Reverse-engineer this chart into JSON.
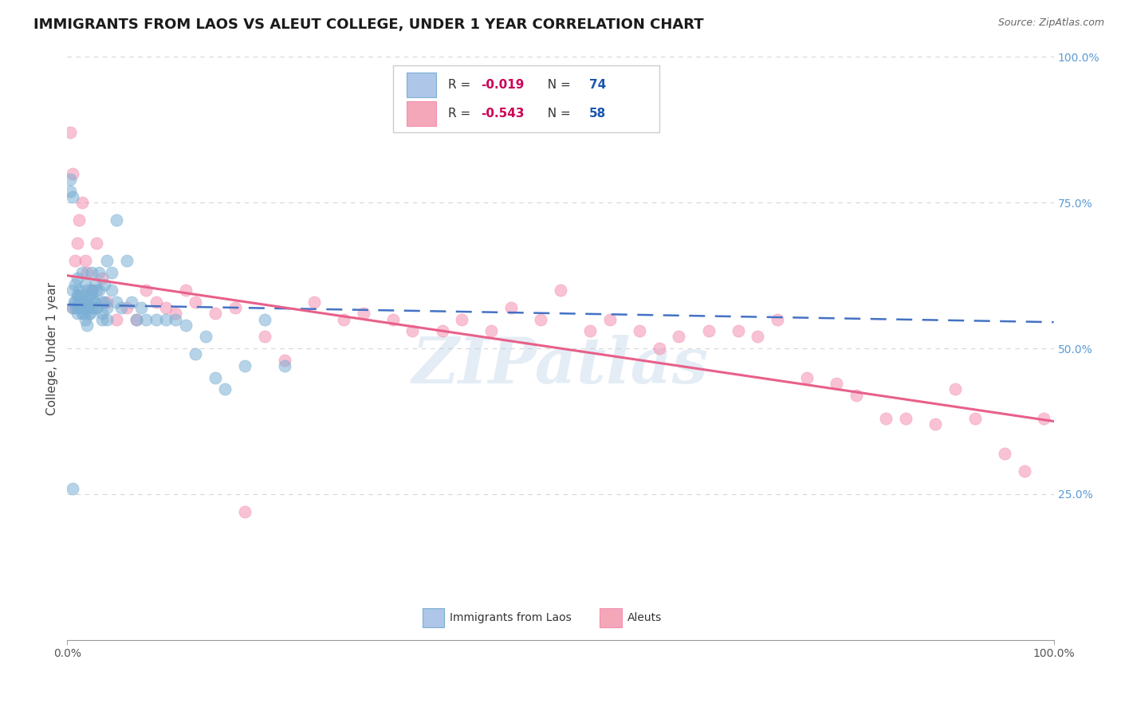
{
  "title": "IMMIGRANTS FROM LAOS VS ALEUT COLLEGE, UNDER 1 YEAR CORRELATION CHART",
  "source": "Source: ZipAtlas.com",
  "ylabel": "College, Under 1 year",
  "xlim": [
    0,
    1
  ],
  "ylim": [
    0,
    1
  ],
  "x_tick_labels": [
    "0.0%",
    "100.0%"
  ],
  "y_tick_labels": [
    "25.0%",
    "50.0%",
    "75.0%",
    "100.0%"
  ],
  "y_tick_positions": [
    0.25,
    0.5,
    0.75,
    1.0
  ],
  "watermark": "ZIPatlas",
  "blue_scatter_x": [
    0.005,
    0.005,
    0.008,
    0.008,
    0.01,
    0.01,
    0.01,
    0.012,
    0.012,
    0.015,
    0.015,
    0.015,
    0.018,
    0.018,
    0.018,
    0.02,
    0.02,
    0.02,
    0.022,
    0.022,
    0.025,
    0.025,
    0.025,
    0.028,
    0.028,
    0.03,
    0.03,
    0.032,
    0.032,
    0.035,
    0.035,
    0.038,
    0.038,
    0.04,
    0.04,
    0.045,
    0.045,
    0.05,
    0.05,
    0.055,
    0.06,
    0.065,
    0.07,
    0.075,
    0.08,
    0.09,
    0.1,
    0.11,
    0.12,
    0.13,
    0.14,
    0.15,
    0.16,
    0.18,
    0.2,
    0.22,
    0.003,
    0.003,
    0.005,
    0.007,
    0.009,
    0.011,
    0.013,
    0.015,
    0.017,
    0.019,
    0.021,
    0.023,
    0.025,
    0.027,
    0.03,
    0.035,
    0.04,
    0.005
  ],
  "blue_scatter_y": [
    0.57,
    0.6,
    0.61,
    0.58,
    0.62,
    0.59,
    0.56,
    0.6,
    0.57,
    0.63,
    0.59,
    0.56,
    0.61,
    0.58,
    0.55,
    0.6,
    0.57,
    0.54,
    0.59,
    0.56,
    0.63,
    0.6,
    0.57,
    0.61,
    0.58,
    0.6,
    0.57,
    0.63,
    0.6,
    0.58,
    0.55,
    0.61,
    0.58,
    0.65,
    0.57,
    0.63,
    0.6,
    0.58,
    0.72,
    0.57,
    0.65,
    0.58,
    0.55,
    0.57,
    0.55,
    0.55,
    0.55,
    0.55,
    0.54,
    0.49,
    0.52,
    0.45,
    0.43,
    0.47,
    0.55,
    0.47,
    0.79,
    0.77,
    0.76,
    0.58,
    0.57,
    0.59,
    0.58,
    0.57,
    0.56,
    0.58,
    0.57,
    0.56,
    0.59,
    0.58,
    0.57,
    0.56,
    0.55,
    0.26
  ],
  "pink_scatter_x": [
    0.005,
    0.008,
    0.01,
    0.012,
    0.015,
    0.018,
    0.02,
    0.025,
    0.03,
    0.035,
    0.04,
    0.05,
    0.06,
    0.07,
    0.08,
    0.09,
    0.1,
    0.11,
    0.12,
    0.13,
    0.15,
    0.17,
    0.2,
    0.22,
    0.25,
    0.28,
    0.3,
    0.33,
    0.35,
    0.38,
    0.4,
    0.43,
    0.45,
    0.48,
    0.5,
    0.53,
    0.55,
    0.58,
    0.6,
    0.62,
    0.65,
    0.68,
    0.7,
    0.72,
    0.75,
    0.78,
    0.8,
    0.83,
    0.85,
    0.88,
    0.9,
    0.92,
    0.95,
    0.97,
    0.99,
    0.003,
    0.005,
    0.18
  ],
  "pink_scatter_y": [
    0.57,
    0.65,
    0.68,
    0.72,
    0.75,
    0.65,
    0.63,
    0.6,
    0.68,
    0.62,
    0.58,
    0.55,
    0.57,
    0.55,
    0.6,
    0.58,
    0.57,
    0.56,
    0.6,
    0.58,
    0.56,
    0.57,
    0.52,
    0.48,
    0.58,
    0.55,
    0.56,
    0.55,
    0.53,
    0.53,
    0.55,
    0.53,
    0.57,
    0.55,
    0.6,
    0.53,
    0.55,
    0.53,
    0.5,
    0.52,
    0.53,
    0.53,
    0.52,
    0.55,
    0.45,
    0.44,
    0.42,
    0.38,
    0.38,
    0.37,
    0.43,
    0.38,
    0.32,
    0.29,
    0.38,
    0.87,
    0.8,
    0.22
  ],
  "blue_line_x": [
    0.0,
    1.0
  ],
  "blue_line_y": [
    0.575,
    0.545
  ],
  "pink_line_x": [
    0.0,
    1.0
  ],
  "pink_line_y": [
    0.625,
    0.375
  ],
  "blue_color": "#7bafd4",
  "pink_color": "#f48fb1",
  "blue_line_color": "#4472c4",
  "pink_line_color": "#e8608a",
  "background_color": "#ffffff",
  "grid_color": "#cccccc"
}
